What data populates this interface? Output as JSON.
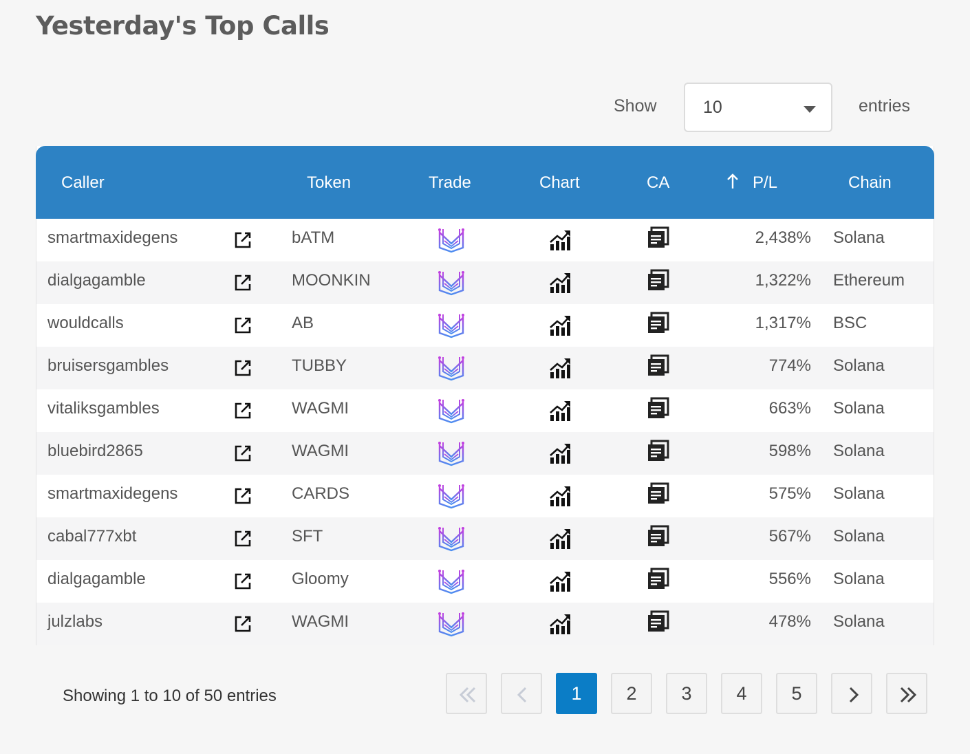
{
  "page": {
    "title": "Yesterday's Top Calls"
  },
  "length_menu": {
    "show_label": "Show",
    "selected": "10",
    "entries_label": "entries"
  },
  "columns": {
    "caller": "Caller",
    "token": "Token",
    "trade": "Trade",
    "chart": "Chart",
    "ca": "CA",
    "pl": "P/L",
    "chain": "Chain"
  },
  "sort": {
    "column": "P/L",
    "direction": "ascending-arrow"
  },
  "rows": [
    {
      "caller": "smartmaxidegens",
      "token": "bATM",
      "pl": "2,438%",
      "chain": "Solana"
    },
    {
      "caller": "dialgagamble",
      "token": "MOONKIN",
      "pl": "1,322%",
      "chain": "Ethereum"
    },
    {
      "caller": "wouldcalls",
      "token": "AB",
      "pl": "1,317%",
      "chain": "BSC"
    },
    {
      "caller": "bruisersgambles",
      "token": "TUBBY",
      "pl": "774%",
      "chain": "Solana"
    },
    {
      "caller": "vitaliksgambles",
      "token": "WAGMI",
      "pl": "663%",
      "chain": "Solana"
    },
    {
      "caller": "bluebird2865",
      "token": "WAGMI",
      "pl": "598%",
      "chain": "Solana"
    },
    {
      "caller": "smartmaxidegens",
      "token": "CARDS",
      "pl": "575%",
      "chain": "Solana"
    },
    {
      "caller": "cabal777xbt",
      "token": "SFT",
      "pl": "567%",
      "chain": "Solana"
    },
    {
      "caller": "dialgagamble",
      "token": "Gloomy",
      "pl": "556%",
      "chain": "Solana"
    },
    {
      "caller": "julzlabs",
      "token": "WAGMI",
      "pl": "478%",
      "chain": "Solana"
    }
  ],
  "row_icons": {
    "caller_link": "external-link-icon",
    "trade": "trade-logo-icon",
    "chart": "chart-icon",
    "ca": "copy-address-icon"
  },
  "info": "Showing 1 to 10 of 50 entries",
  "pagination": {
    "pages": [
      "1",
      "2",
      "3",
      "4",
      "5"
    ],
    "current": "1",
    "first_icon": "double-chevron-left-icon",
    "prev_icon": "chevron-left-icon",
    "next_icon": "chevron-right-icon",
    "last_icon": "double-chevron-right-icon"
  },
  "colors": {
    "header": "#2d82c4",
    "active_page": "#0b7dc6",
    "background": "#f6f6f6"
  }
}
